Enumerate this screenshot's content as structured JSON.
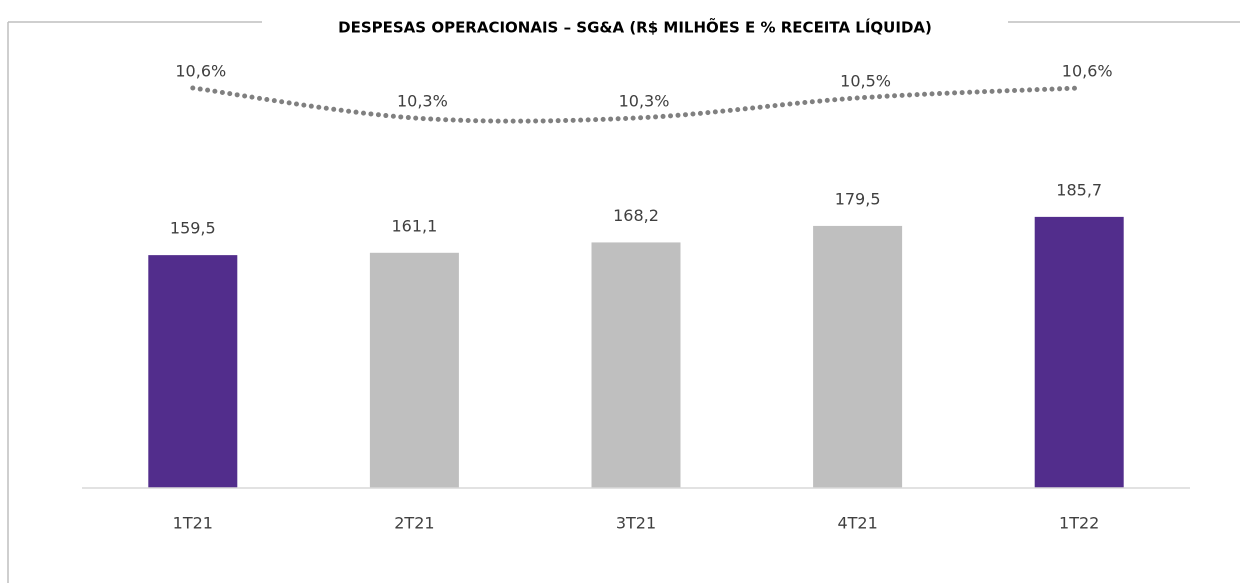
{
  "chart_data": {
    "type": "bar",
    "title": "DESPESAS OPERACIONAIS – SG&A (R$ MILHÕES E % RECEITA LÍQUIDA)",
    "categories": [
      "1T21",
      "2T21",
      "3T21",
      "4T21",
      "1T22"
    ],
    "ylim": [
      0,
      200
    ],
    "y2lim": [
      10,
      11
    ],
    "series": [
      {
        "type": "bar",
        "colors": [
          "#522d8c",
          "#bfbfbf",
          "#bfbfbf",
          "#bfbfbf",
          "#522d8c"
        ],
        "values": [
          159.5,
          161.1,
          168.2,
          179.5,
          185.7
        ],
        "value_labels": [
          "159,5",
          "161,1",
          "168,2",
          "179,5",
          "185,7"
        ]
      },
      {
        "type": "line",
        "axis": "y2",
        "color": "#808080",
        "values": [
          10.6,
          10.3,
          10.3,
          10.5,
          10.6
        ],
        "value_labels": [
          "10,6%",
          "10,3%",
          "10,3%",
          "10,5%",
          "10,6%"
        ]
      }
    ]
  }
}
